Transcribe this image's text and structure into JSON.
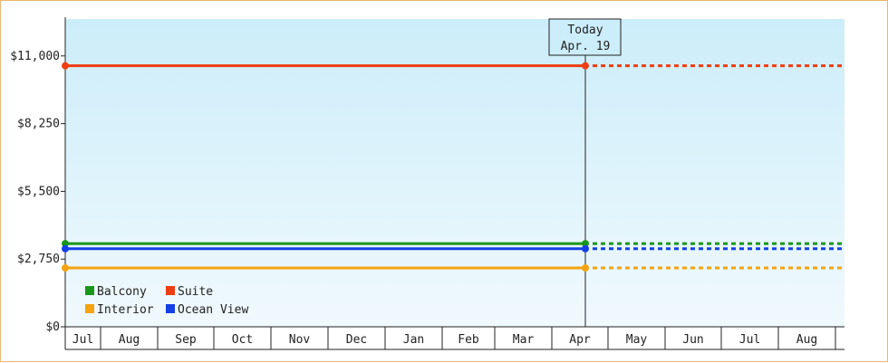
{
  "chart_data": {
    "type": "line",
    "title": "",
    "xlabel": "",
    "ylabel": "",
    "y_ticks": [
      "$0",
      "$2,750",
      "$5,500",
      "$8,250",
      "$11,000"
    ],
    "ylim": [
      0,
      12500
    ],
    "x_ticks": [
      "Jul",
      "Aug",
      "Sep",
      "Oct",
      "Nov",
      "Dec",
      "Jan",
      "Feb",
      "Mar",
      "Apr",
      "May",
      "Jun",
      "Jul",
      "Aug"
    ],
    "today_marker": {
      "line1": "Today",
      "line2": "Apr. 19"
    },
    "series": [
      {
        "name": "Suite",
        "color": "#ee3d11",
        "value": 10600
      },
      {
        "name": "Balcony",
        "color": "#1a961a",
        "value": 3380
      },
      {
        "name": "Ocean View",
        "color": "#1540e6",
        "value": 3170
      },
      {
        "name": "Interior",
        "color": "#f5a30f",
        "value": 2390
      }
    ],
    "legend": {
      "placement": "bottom-left",
      "rows": [
        [
          "Balcony",
          "Suite"
        ],
        [
          "Interior",
          "Ocean View"
        ]
      ]
    },
    "grid": false,
    "background_gradient": [
      "#ccedfa",
      "#f0f9fd"
    ]
  }
}
